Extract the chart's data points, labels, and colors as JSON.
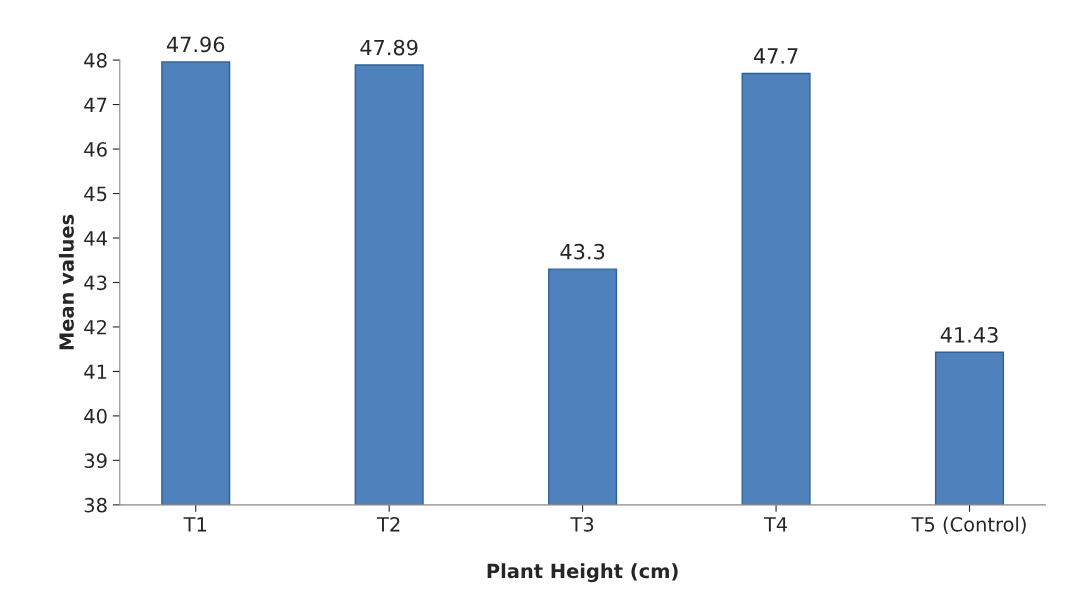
{
  "chart_data": {
    "type": "bar",
    "xlabel": "Plant Height (cm)",
    "ylabel": "Mean values",
    "categories": [
      "T1",
      "T2",
      "T3",
      "T4",
      "T5 (Control)"
    ],
    "values": [
      47.96,
      47.89,
      43.3,
      47.7,
      41.43
    ],
    "color": "#4f81bd",
    "ylim": [
      38,
      48
    ],
    "yticks": [
      38,
      39,
      40,
      41,
      42,
      43,
      44,
      45,
      46,
      47,
      48
    ],
    "data_labels": true,
    "grid": false
  }
}
